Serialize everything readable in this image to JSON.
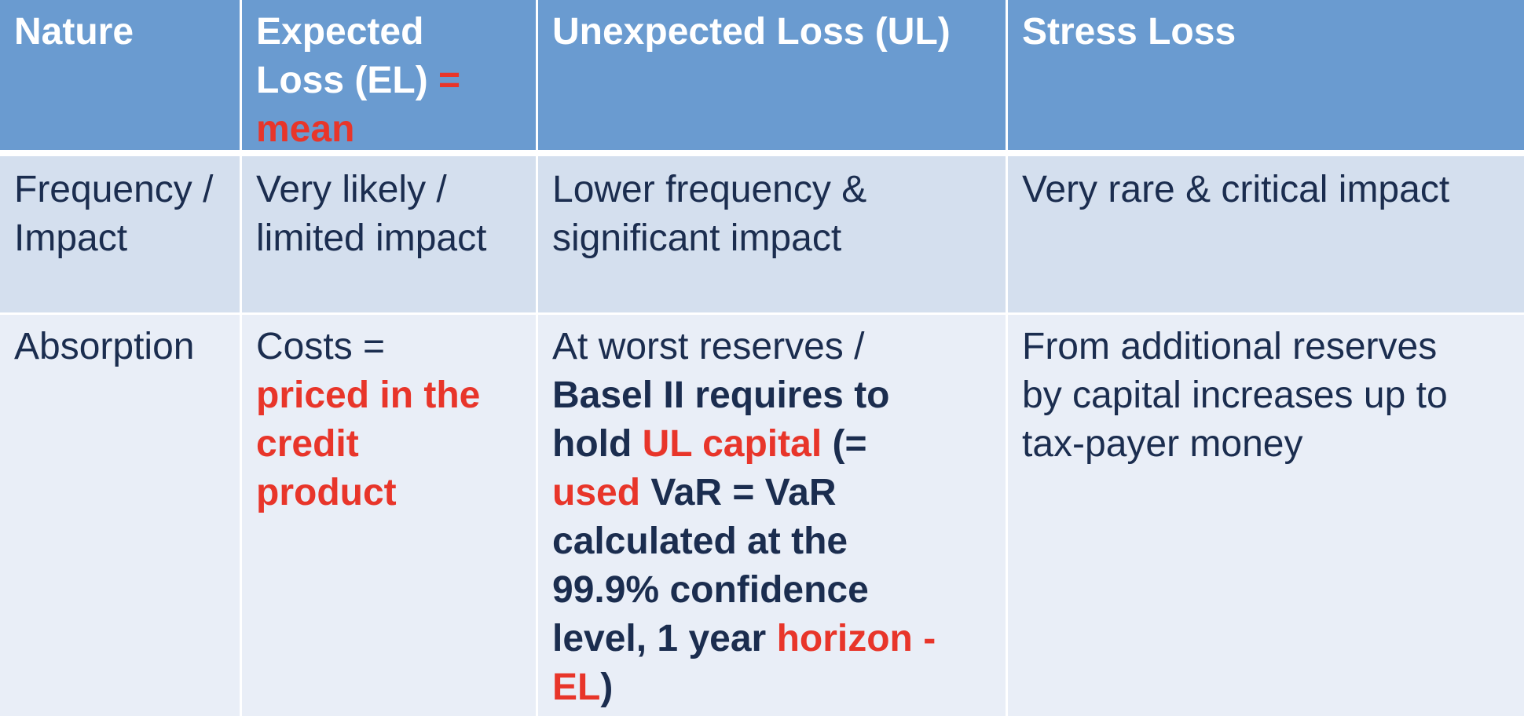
{
  "table": {
    "headers": {
      "nature": "Nature",
      "el_line1": "Expected",
      "el_line2": "Loss (EL)",
      "el_eq": "=",
      "el_mean": "mean",
      "ul": "Unexpected Loss (UL)",
      "stress": "Stress Loss"
    },
    "row_frequency": {
      "label_line1": "Frequency /",
      "label_line2": "Impact",
      "el_line1": "Very likely /",
      "el_line2": "limited impact",
      "ul_line1": "Lower frequency &",
      "ul_line2": "significant impact",
      "stress": "Very rare & critical impact"
    },
    "row_absorption": {
      "label": "Absorption",
      "el_costs": "Costs =",
      "el_red1": "priced in the",
      "el_red2": "credit",
      "el_red3": "product",
      "ul_l1": "At worst reserves /",
      "ul_l2": "Basel II requires to",
      "ul_l3a": "hold ",
      "ul_l3b": "UL capital",
      "ul_l3c": " (=",
      "ul_l4a": "used",
      "ul_l4b": " VaR = VaR",
      "ul_l5": "calculated at the",
      "ul_l6": "99.9% confidence",
      "ul_l7a": "level, 1 year ",
      "ul_l7b": "horizon -",
      "ul_l8a": "EL",
      "ul_l8b": ")",
      "stress_l1": "From additional reserves",
      "stress_l2": "by capital increases up to",
      "stress_l3": "tax-payer money"
    },
    "colors": {
      "header_bg": "#6a9bd0",
      "row1_bg": "#d4dfee",
      "row2_bg": "#e9eef7",
      "text": "#1b2d4f",
      "accent_red": "#e8352a"
    }
  }
}
